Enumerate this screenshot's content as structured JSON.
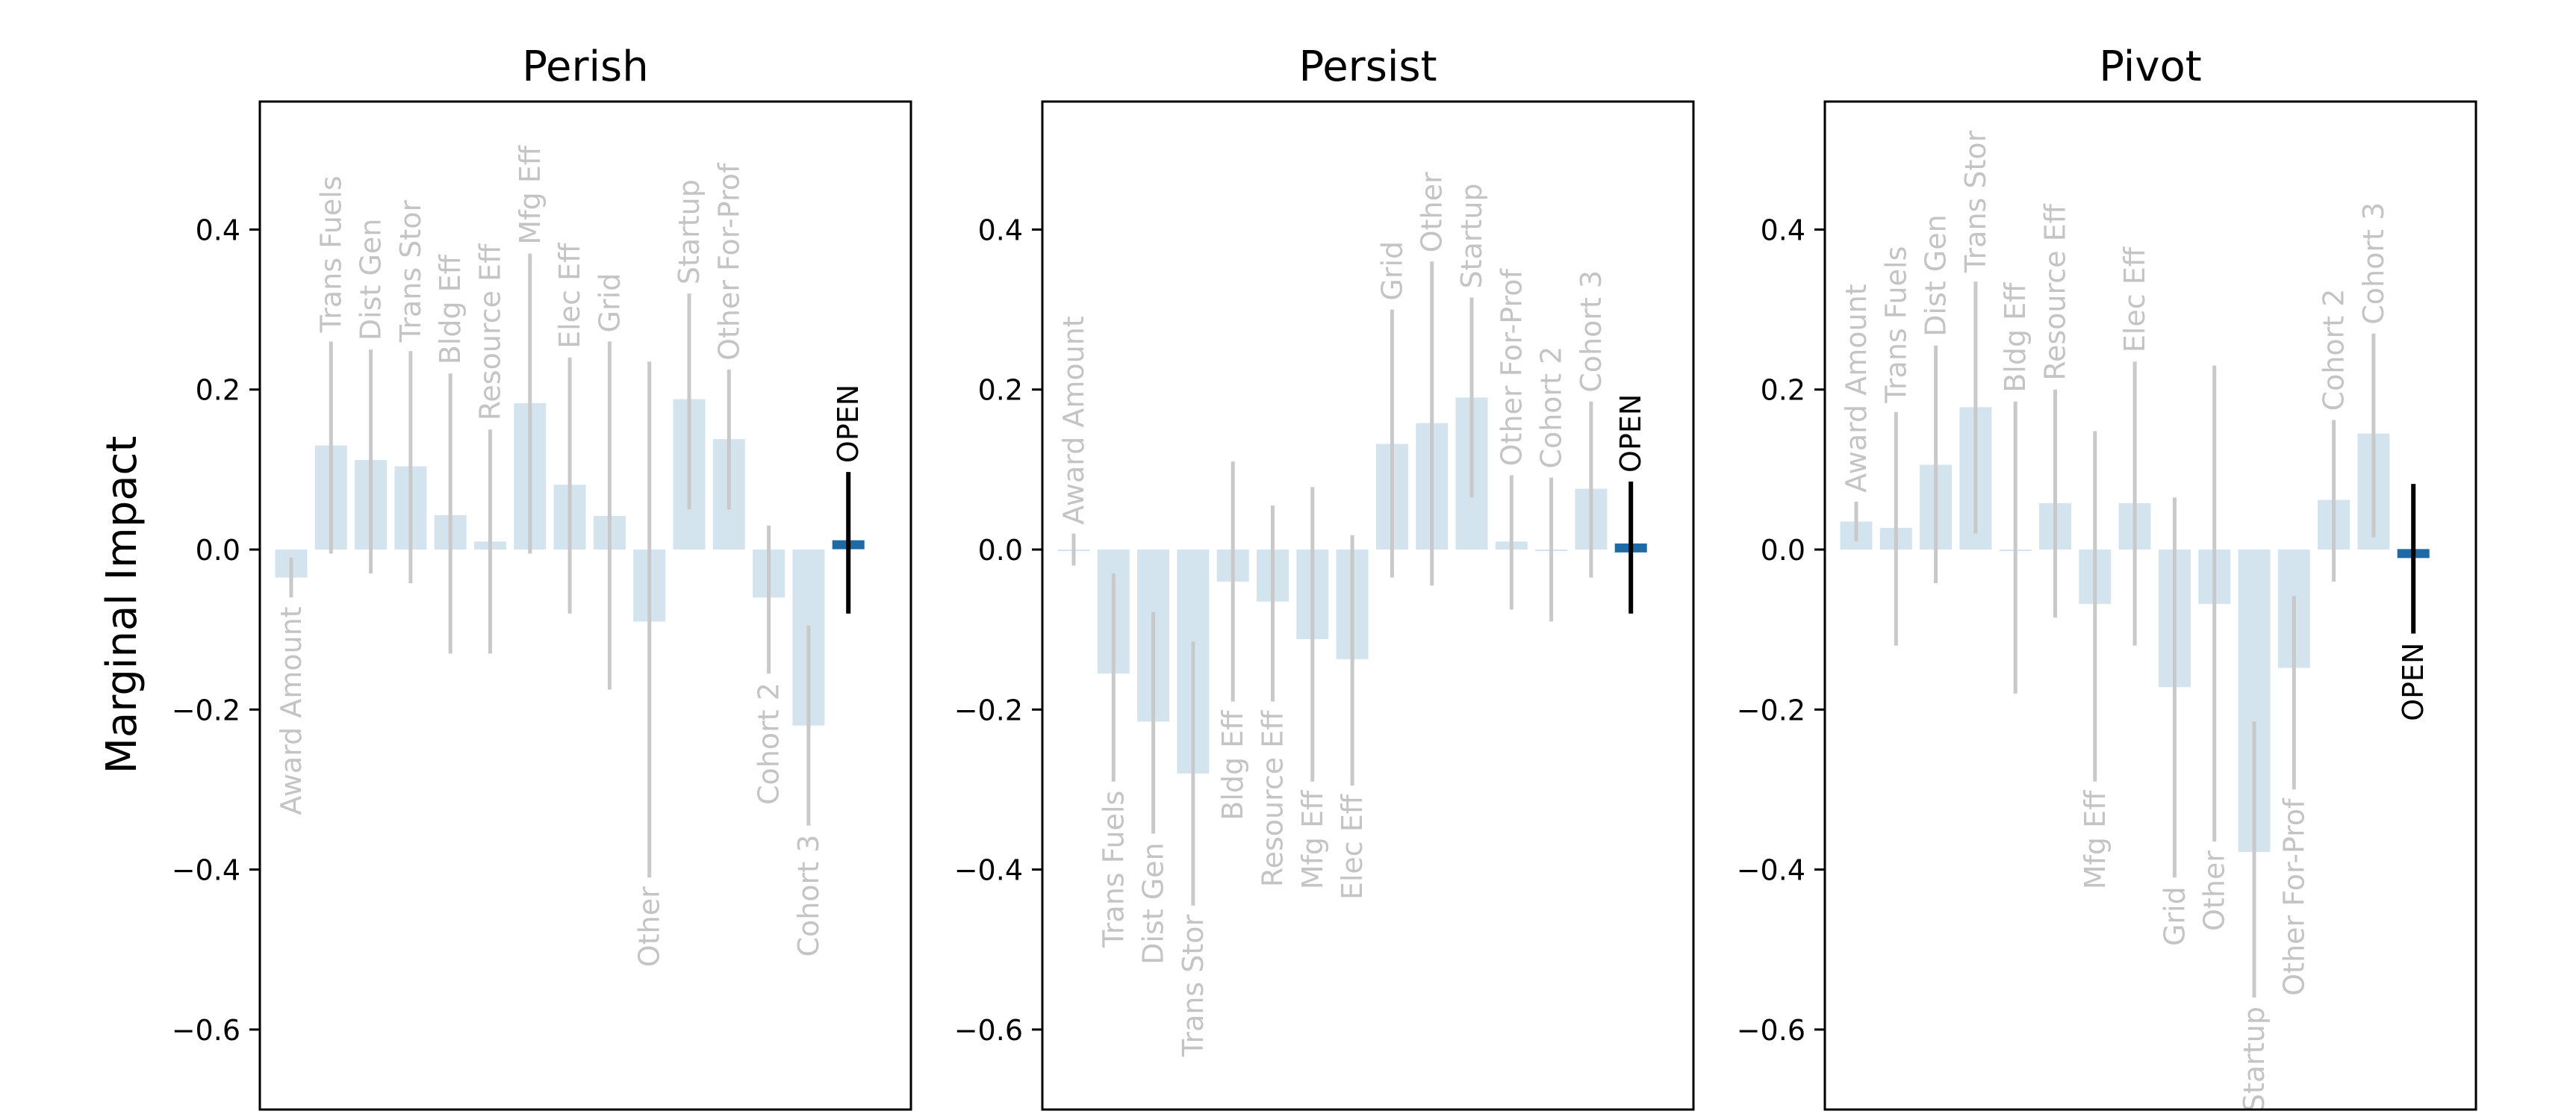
{
  "figure": {
    "ylabel": "Marginal Impact",
    "yticks": [
      0.4,
      0.2,
      0.0,
      -0.2,
      -0.4,
      -0.6
    ],
    "ylim": [
      -0.7,
      0.56
    ]
  },
  "colors": {
    "bar_fill": "#d3e4ef",
    "errorbar": "#c9c9c9",
    "faded_label": "#c4c4c4",
    "highlight_bar": "#1f6aa5",
    "highlight_errorbar": "#000000",
    "highlight_label": "#000000",
    "axis": "#000000"
  },
  "chart_data": [
    {
      "type": "bar",
      "title": "Perish",
      "highlight": "OPEN",
      "categories": [
        "Award Amount",
        "Trans Fuels",
        "Dist Gen",
        "Trans Stor",
        "Bldg Eff",
        "Resource Eff",
        "Mfg Eff",
        "Elec Eff",
        "Grid",
        "Other",
        "Startup",
        "Other For-Prof",
        "Cohort 2",
        "Cohort 3",
        "OPEN"
      ],
      "values": [
        -0.035,
        0.13,
        0.112,
        0.104,
        0.043,
        0.01,
        0.183,
        0.081,
        0.042,
        -0.09,
        0.188,
        0.138,
        -0.06,
        -0.22,
        0.006
      ],
      "error_low": [
        -0.06,
        -0.005,
        -0.03,
        -0.042,
        -0.13,
        -0.13,
        -0.005,
        -0.08,
        -0.175,
        -0.41,
        0.05,
        0.05,
        -0.155,
        -0.345,
        -0.08
      ],
      "error_high": [
        -0.01,
        0.26,
        0.25,
        0.248,
        0.22,
        0.15,
        0.37,
        0.24,
        0.26,
        0.235,
        0.32,
        0.225,
        0.03,
        -0.095,
        0.097
      ],
      "ylim": [
        -0.7,
        0.56
      ]
    },
    {
      "type": "bar",
      "title": "Persist",
      "highlight": "OPEN",
      "categories": [
        "Award Amount",
        "Trans Fuels",
        "Dist Gen",
        "Trans Stor",
        "Bldg Eff",
        "Resource Eff",
        "Mfg Eff",
        "Elec Eff",
        "Grid",
        "Other",
        "Startup",
        "Other For-Prof",
        "Cohort 2",
        "Cohort 3",
        "OPEN"
      ],
      "values": [
        0.0,
        -0.155,
        -0.215,
        -0.28,
        -0.04,
        -0.065,
        -0.112,
        -0.137,
        0.132,
        0.158,
        0.19,
        0.01,
        0.0,
        0.076,
        0.002
      ],
      "error_low": [
        -0.02,
        -0.29,
        -0.355,
        -0.445,
        -0.19,
        -0.19,
        -0.29,
        -0.295,
        -0.035,
        -0.045,
        0.065,
        -0.075,
        -0.09,
        -0.035,
        -0.08
      ],
      "error_high": [
        0.02,
        -0.03,
        -0.078,
        -0.115,
        0.11,
        0.055,
        0.078,
        0.018,
        0.3,
        0.36,
        0.315,
        0.093,
        0.09,
        0.185,
        0.085
      ],
      "ylim": [
        -0.7,
        0.56
      ]
    },
    {
      "type": "bar",
      "title": "Pivot",
      "highlight": "OPEN",
      "categories": [
        "Award Amount",
        "Trans Fuels",
        "Dist Gen",
        "Trans Stor",
        "Bldg Eff",
        "Resource Eff",
        "Mfg Eff",
        "Elec Eff",
        "Grid",
        "Other",
        "Startup",
        "Other For-Prof",
        "Cohort 2",
        "Cohort 3",
        "OPEN"
      ],
      "values": [
        0.035,
        0.027,
        0.106,
        0.178,
        0.0,
        0.058,
        -0.068,
        0.058,
        -0.172,
        -0.068,
        -0.378,
        -0.148,
        0.062,
        0.145,
        -0.005
      ],
      "error_low": [
        0.01,
        -0.12,
        -0.042,
        0.02,
        -0.18,
        -0.085,
        -0.29,
        -0.12,
        -0.41,
        -0.365,
        -0.56,
        -0.3,
        -0.04,
        0.015,
        -0.105
      ],
      "error_high": [
        0.06,
        0.172,
        0.255,
        0.335,
        0.185,
        0.2,
        0.148,
        0.235,
        0.065,
        0.23,
        -0.215,
        -0.058,
        0.162,
        0.27,
        0.082
      ],
      "ylim": [
        -0.7,
        0.56
      ]
    }
  ]
}
